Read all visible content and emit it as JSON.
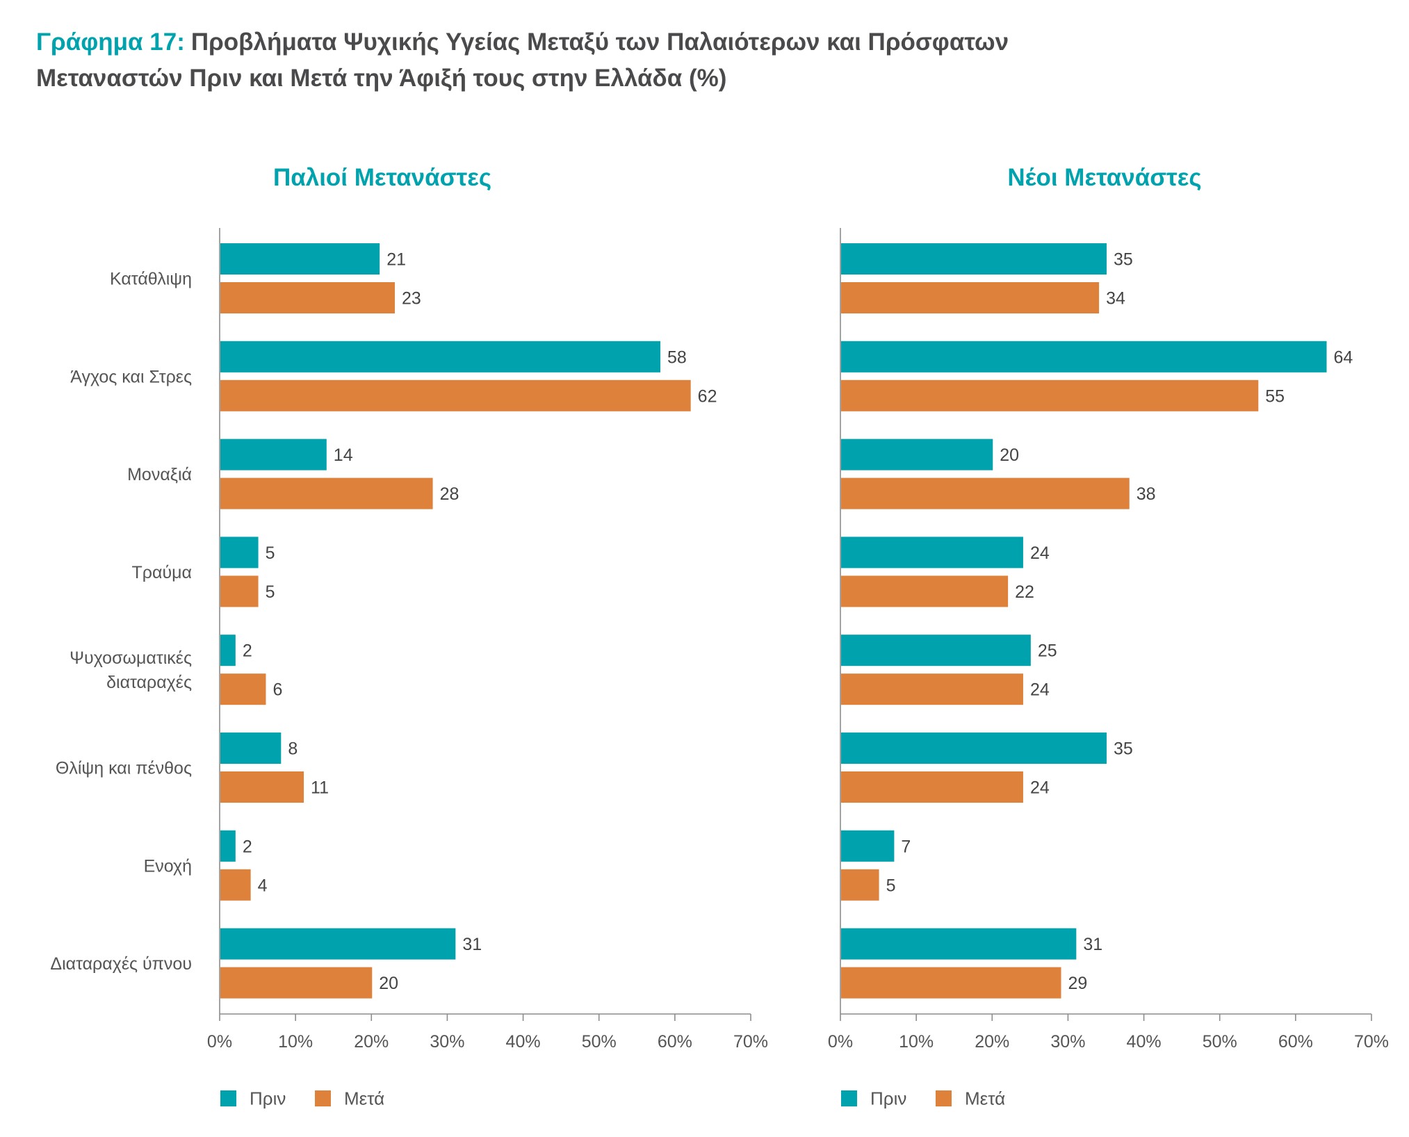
{
  "figure": {
    "label": "Γράφημα 17:",
    "title_line1": "Προβλήματα Ψυχικής Υγείας Μεταξύ των Παλαιότερων και Πρόσφατων",
    "title_line2": "Μεταναστών Πριν και Μετά την Άφιξή τους στην Ελλάδα (%)"
  },
  "colors": {
    "accent": "#00A3AD",
    "title_text": "#4A4A4C",
    "label_text": "#555555",
    "axis": "#8C8C8C"
  },
  "chart_data": {
    "type": "bar",
    "orientation": "horizontal",
    "categories": [
      "Κατάθλιψη",
      "Άγχος και Στρες",
      "Μοναξιά",
      "Τραύμα",
      "Ψυχοσωματικές διαταραχές",
      "Θλίψη και πένθος",
      "Ενοχή",
      "Διαταραχές ύπνου"
    ],
    "xlim": [
      0,
      70
    ],
    "xticks": [
      0,
      10,
      20,
      30,
      40,
      50,
      60,
      70
    ],
    "xtick_labels": [
      "0%",
      "10%",
      "20%",
      "30%",
      "40%",
      "50%",
      "60%",
      "70%"
    ],
    "grid": false,
    "data_labels": true,
    "legend": "bottom-left",
    "panels": [
      {
        "title": "Παλιοί Μετανάστες",
        "series": [
          {
            "name": "Πριν",
            "color": "#00A3AD",
            "values": [
              21,
              58,
              14,
              5,
              2,
              8,
              2,
              31
            ]
          },
          {
            "name": "Μετά",
            "color": "#DE823B",
            "values": [
              23,
              62,
              28,
              5,
              6,
              11,
              4,
              20
            ]
          }
        ]
      },
      {
        "title": "Νέοι Μετανάστες",
        "series": [
          {
            "name": "Πριν",
            "color": "#00A3AD",
            "values": [
              35,
              64,
              20,
              24,
              25,
              35,
              7,
              31
            ]
          },
          {
            "name": "Μετά",
            "color": "#DE823B",
            "values": [
              34,
              55,
              38,
              22,
              24,
              24,
              5,
              29
            ]
          }
        ]
      }
    ]
  }
}
